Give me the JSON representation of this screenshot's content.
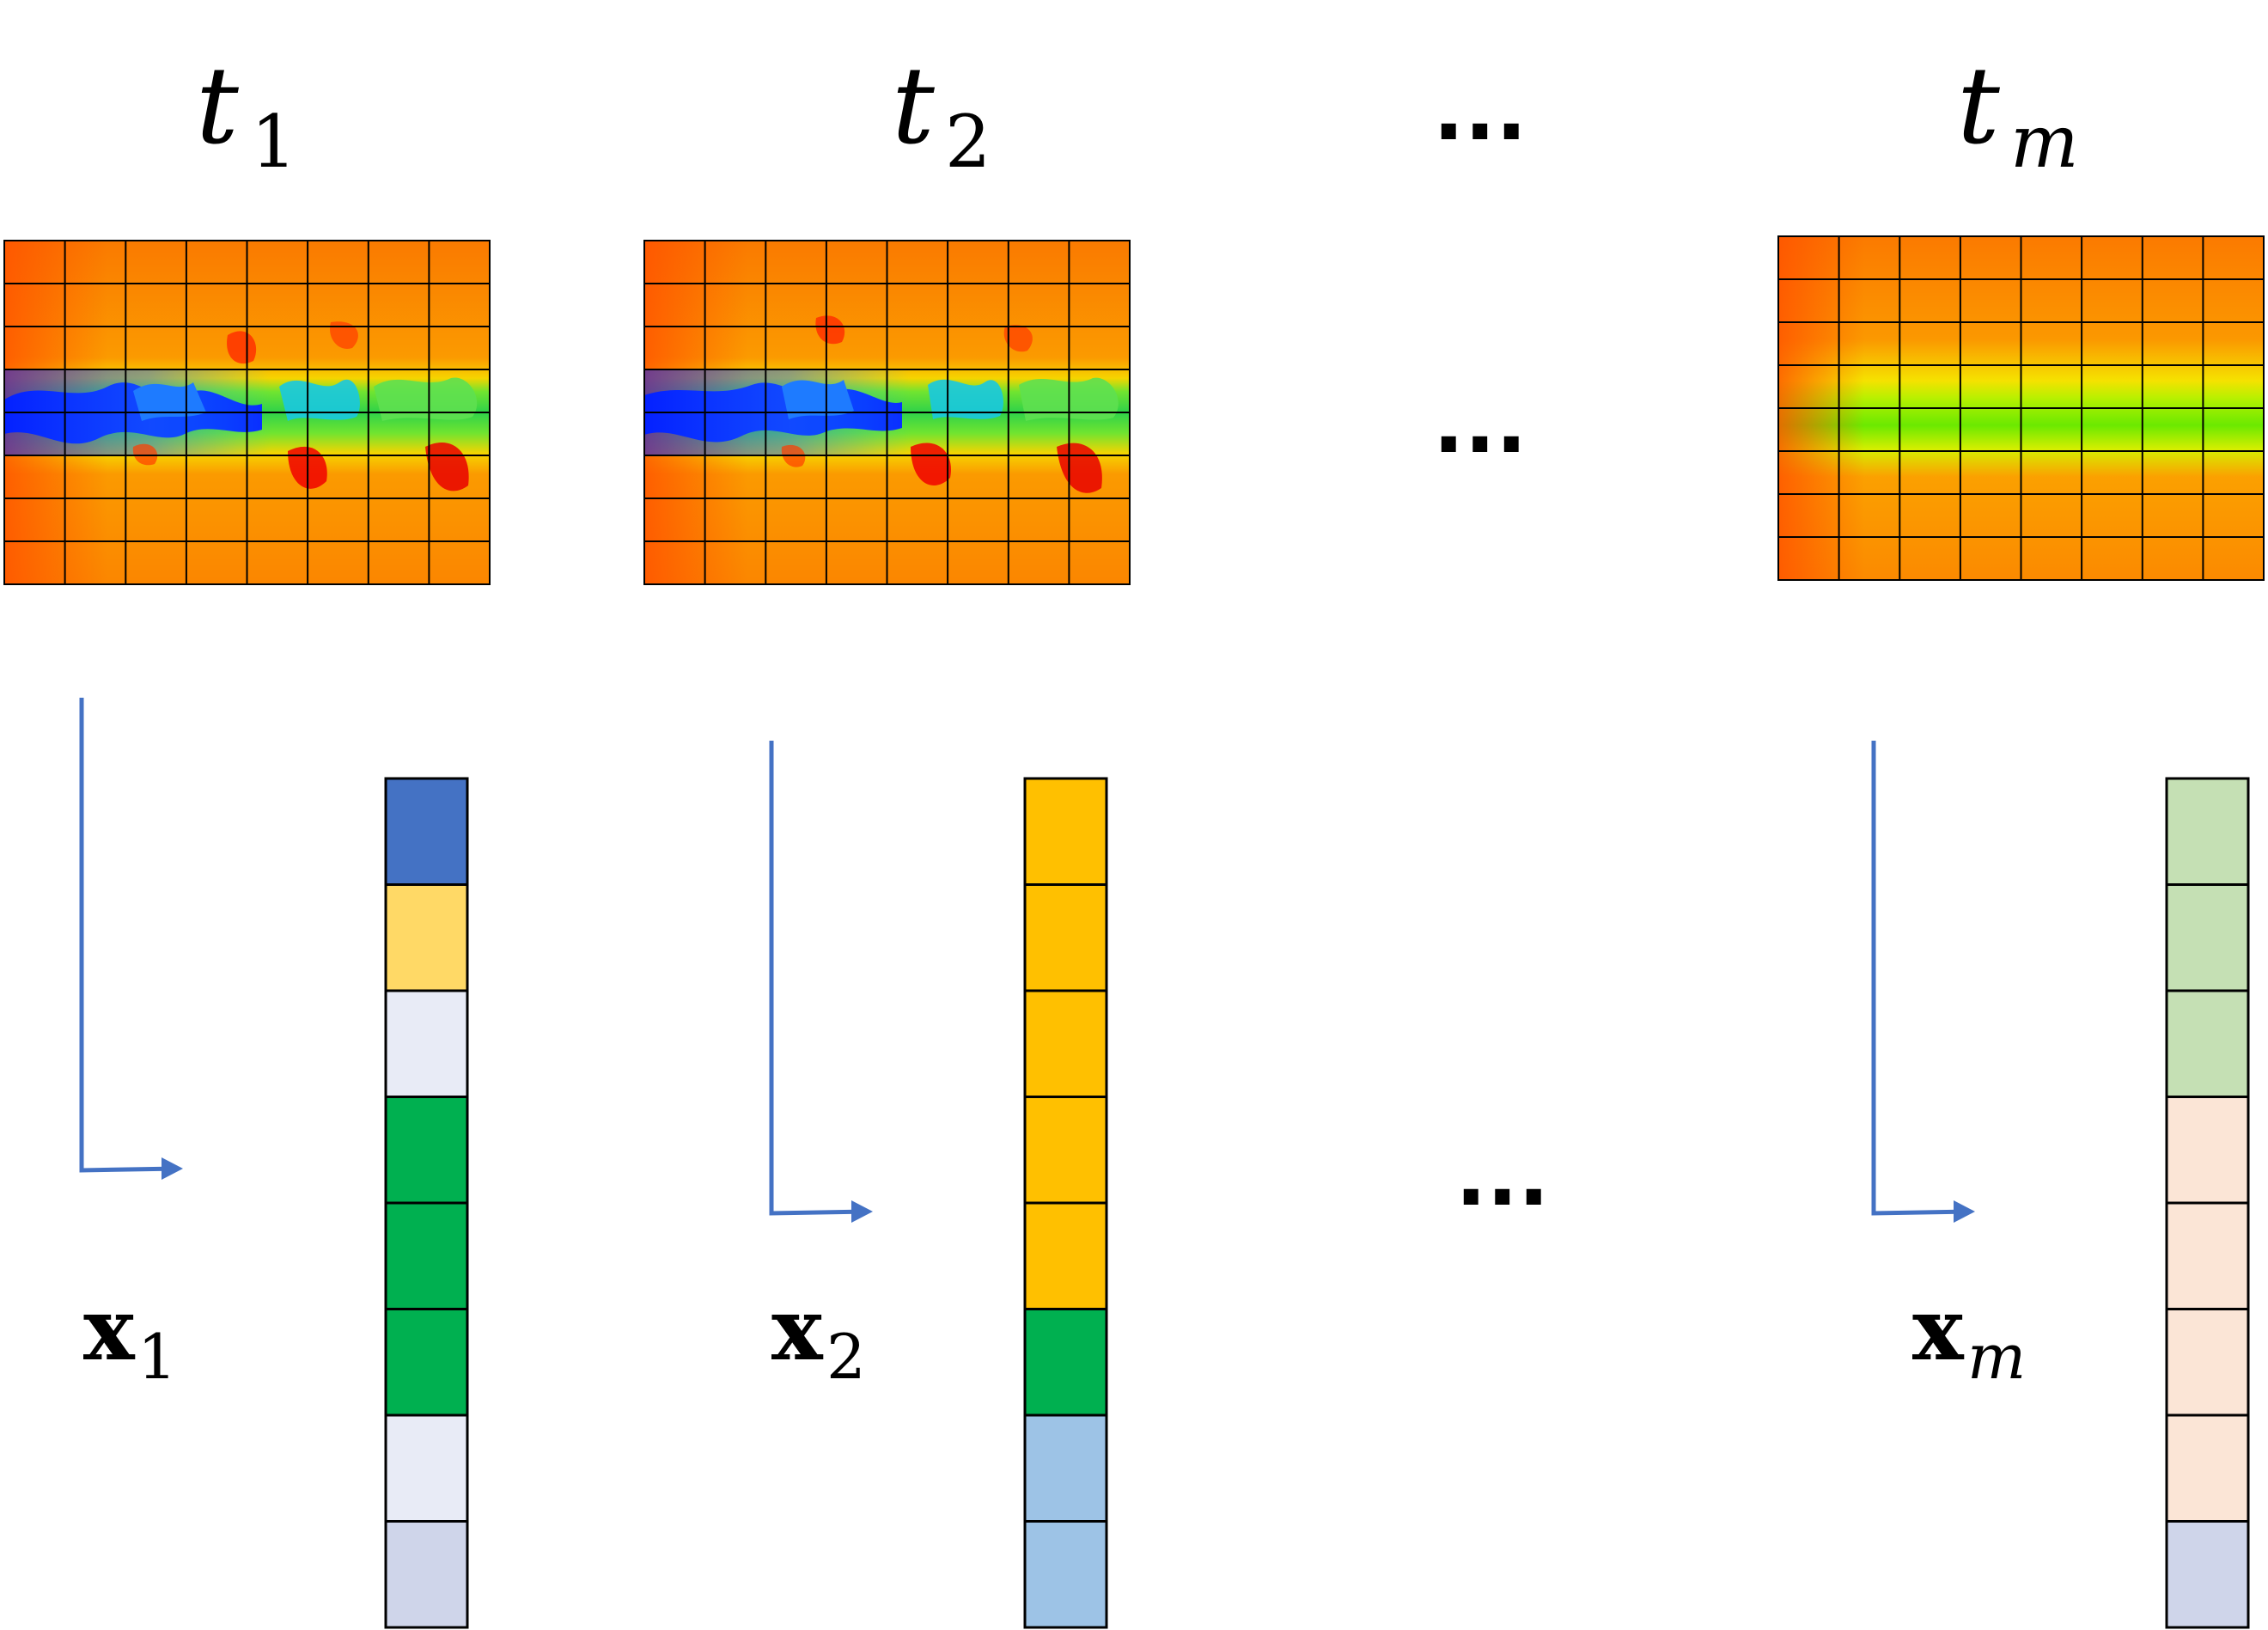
{
  "columns": [
    {
      "time_label": {
        "base": "t",
        "subscript": "1"
      },
      "vector_label": {
        "base": "x",
        "subscript": "1"
      },
      "snapshot": "turbulent-wake",
      "cells": [
        "#4472c4",
        "#ffd966",
        "#e8ebf6",
        "#00b050",
        "#00b050",
        "#00b050",
        "#e8ebf6",
        "#cfd5ea"
      ]
    },
    {
      "time_label": {
        "base": "t",
        "subscript": "2"
      },
      "vector_label": {
        "base": "x",
        "subscript": "2"
      },
      "snapshot": "turbulent-wake",
      "cells": [
        "#ffc000",
        "#ffc000",
        "#ffc000",
        "#ffc000",
        "#ffc000",
        "#00b050",
        "#9dc3e6",
        "#9dc3e6"
      ]
    },
    {
      "time_label": {
        "base": "t",
        "subscript": "m"
      },
      "vector_label": {
        "base": "x",
        "subscript": "m"
      },
      "snapshot": "steady-wake",
      "cells": [
        "#c5e0b4",
        "#c5e0b4",
        "#c5e0b4",
        "#fbe5d6",
        "#fbe5d6",
        "#fbe5d6",
        "#fbe5d6",
        "#cfd5ea"
      ]
    }
  ],
  "ellipsis": "...",
  "colors": {
    "arrow": "#4472c4",
    "grid_line": "#000000",
    "field_background": "#fb8c00",
    "field_hot": "#ff5a00",
    "field_cold": "#0019ff",
    "field_mid": "#4cf000"
  },
  "icons": {
    "flatten_arrow": "l-shaped-arrow-icon"
  }
}
